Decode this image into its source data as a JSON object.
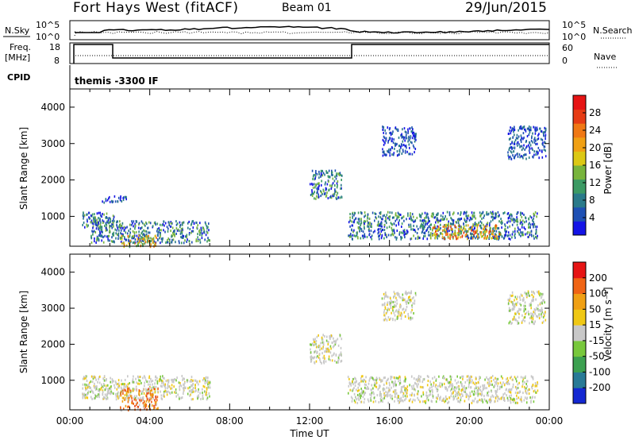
{
  "header": {
    "title": "Fort Hays West (fitACF)",
    "beam": "Beam 01",
    "date": "29/Jun/2015"
  },
  "top_panels": {
    "nsky_label": "N.Sky",
    "nsky_ticks": [
      "10^5",
      "10^0"
    ],
    "nsearch_label": "N.Search",
    "nsearch_ticks": [
      "10^5",
      "10^0"
    ],
    "freq_label_1": "Freq.",
    "freq_label_2": "[MHz]",
    "freq_ticks": [
      "18",
      "8"
    ],
    "nave_label": "Nave",
    "nave_ticks": [
      "60",
      "0"
    ],
    "cpid_label": "CPID",
    "cpid_value": "themis -3300 IF"
  },
  "chart_data": [
    {
      "type": "heatmap",
      "name": "power",
      "ylabel": "Slant Range [km]",
      "xlabel": "",
      "x_range_hours": [
        0,
        24
      ],
      "ylim": [
        180,
        4500
      ],
      "y_ticks": [
        "1000",
        "2000",
        "3000",
        "4000"
      ],
      "colorbar": {
        "label": "Power [dB]",
        "ticks": [
          "4",
          "8",
          "12",
          "16",
          "20",
          "24",
          "28"
        ],
        "colors": [
          "#1414e6",
          "#1e50b4",
          "#2a7a8a",
          "#3c9a64",
          "#78b43c",
          "#dcc814",
          "#f0a014",
          "#f07814",
          "#e63c14",
          "#e61414"
        ]
      },
      "echo_regions": [
        {
          "t": [
            0.6,
            2.2
          ],
          "r": [
            700,
            1150
          ],
          "level": "low-mid"
        },
        {
          "t": [
            1.6,
            2.8
          ],
          "r": [
            1400,
            1600
          ],
          "level": "low"
        },
        {
          "t": [
            1.0,
            7.0
          ],
          "r": [
            300,
            900
          ],
          "level": "low-mid"
        },
        {
          "t": [
            2.5,
            4.4
          ],
          "r": [
            180,
            500
          ],
          "level": "mid-high"
        },
        {
          "t": [
            12.0,
            13.6
          ],
          "r": [
            1500,
            2300
          ],
          "level": "low-mid"
        },
        {
          "t": [
            13.9,
            23.4
          ],
          "r": [
            400,
            1150
          ],
          "level": "low-mid"
        },
        {
          "t": [
            18.0,
            21.5
          ],
          "r": [
            400,
            800
          ],
          "level": "high"
        },
        {
          "t": [
            15.6,
            17.3
          ],
          "r": [
            2700,
            3500
          ],
          "level": "low"
        },
        {
          "t": [
            21.9,
            23.8
          ],
          "r": [
            2600,
            3500
          ],
          "level": "low"
        }
      ]
    },
    {
      "type": "heatmap",
      "name": "velocity",
      "ylabel": "Slant Range [km]",
      "xlabel": "Time UT",
      "x_ticks": [
        "00:00",
        "04:00",
        "08:00",
        "12:00",
        "16:00",
        "20:00",
        "00:00"
      ],
      "ylim": [
        180,
        4500
      ],
      "y_ticks": [
        "1000",
        "2000",
        "3000",
        "4000"
      ],
      "colorbar": {
        "label": "Velocity [m s⁻¹]",
        "ticks": [
          "200",
          "100",
          "50",
          "15",
          "-15",
          "-50",
          "-100",
          "-200"
        ],
        "colors": [
          "#1428d2",
          "#287a96",
          "#3ca050",
          "#78c83c",
          "#c8c8c8",
          "#f0c814",
          "#f0a014",
          "#f06414",
          "#e61414"
        ]
      },
      "echo_regions": [
        {
          "t": [
            0.6,
            7.0
          ],
          "r": [
            500,
            1150
          ],
          "level": "ground"
        },
        {
          "t": [
            2.5,
            4.4
          ],
          "r": [
            180,
            800
          ],
          "level": "negative"
        },
        {
          "t": [
            12.0,
            13.6
          ],
          "r": [
            1500,
            2300
          ],
          "level": "ground"
        },
        {
          "t": [
            13.9,
            23.4
          ],
          "r": [
            400,
            1150
          ],
          "level": "ground"
        },
        {
          "t": [
            15.6,
            17.3
          ],
          "r": [
            2700,
            3500
          ],
          "level": "ground"
        },
        {
          "t": [
            21.9,
            23.8
          ],
          "r": [
            2600,
            3500
          ],
          "level": "ground"
        }
      ]
    }
  ]
}
